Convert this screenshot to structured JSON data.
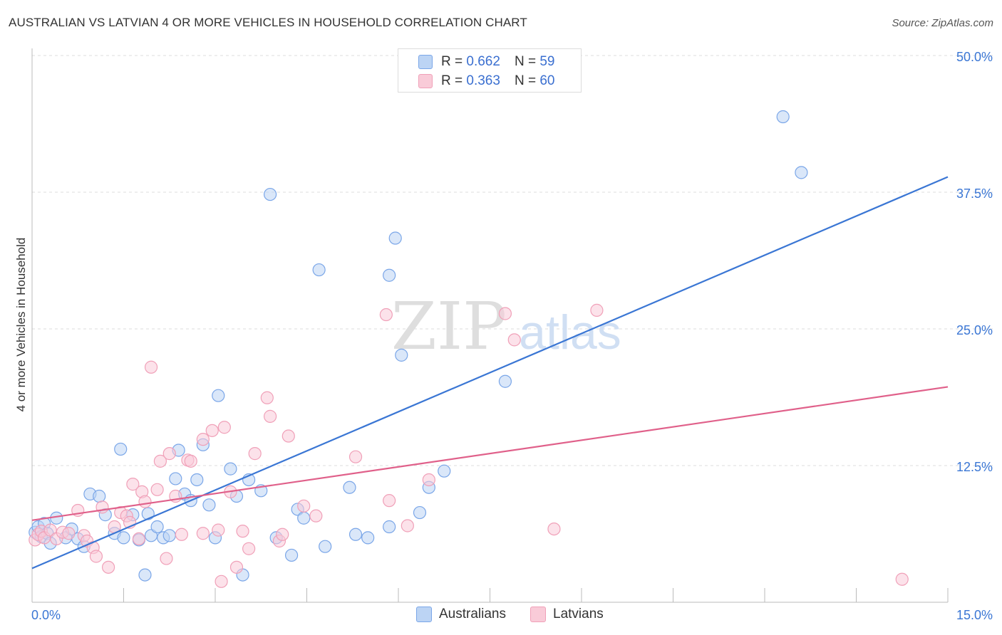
{
  "header": {
    "title": "AUSTRALIAN VS LATVIAN 4 OR MORE VEHICLES IN HOUSEHOLD CORRELATION CHART",
    "source": "Source: ZipAtlas.com"
  },
  "watermark": {
    "zip": "ZIP",
    "atlas": "atlas"
  },
  "legend_top": {
    "rows": [
      {
        "r_label": "R = ",
        "r_value": "0.662",
        "n_label": "N = ",
        "n_value": "59",
        "color": "#7aa6e8",
        "fill": "#bcd4f4"
      },
      {
        "r_label": "R = ",
        "r_value": "0.363",
        "n_label": "N = ",
        "n_value": "60",
        "color": "#f0a0b8",
        "fill": "#f9cbd8"
      }
    ]
  },
  "legend_bottom": {
    "items": [
      {
        "label": "Australians",
        "color": "#7aa6e8",
        "fill": "#bcd4f4"
      },
      {
        "label": "Latvians",
        "color": "#f0a0b8",
        "fill": "#f9cbd8"
      }
    ]
  },
  "chart_data": {
    "type": "scatter",
    "title": "AUSTRALIAN VS LATVIAN 4 OR MORE VEHICLES IN HOUSEHOLD CORRELATION CHART",
    "xlabel": "",
    "ylabel": "4 or more Vehicles in Household",
    "xlim": [
      0,
      15
    ],
    "ylim": [
      0,
      50
    ],
    "x_tick_labels": [
      {
        "value": 0,
        "label": "0.0%"
      },
      {
        "value": 15,
        "label": "15.0%"
      }
    ],
    "y_tick_labels": [
      {
        "value": 12.5,
        "label": "12.5%"
      },
      {
        "value": 25,
        "label": "25.0%"
      },
      {
        "value": 37.5,
        "label": "37.5%"
      },
      {
        "value": 50,
        "label": "50.0%"
      }
    ],
    "x_minor_ticks": [
      1.5,
      3,
      4.5,
      6,
      7.5,
      9,
      10.5,
      12,
      13.5
    ],
    "grid": true,
    "legend_position": "top-center",
    "series": [
      {
        "name": "Australians",
        "color": "#3a76d4",
        "marker_fill": "#bcd4f4",
        "marker_stroke": "#7aa6e8",
        "R": 0.662,
        "N": 59,
        "trendline": [
          [
            0,
            3.1
          ],
          [
            15,
            38.9
          ]
        ],
        "points": [
          [
            0.05,
            6.4
          ],
          [
            0.1,
            6.9
          ],
          [
            0.15,
            6.0
          ],
          [
            0.2,
            7.2
          ],
          [
            0.25,
            6.3
          ],
          [
            0.3,
            5.4
          ],
          [
            0.4,
            7.7
          ],
          [
            0.55,
            5.9
          ],
          [
            0.65,
            6.7
          ],
          [
            0.75,
            5.8
          ],
          [
            0.85,
            5.1
          ],
          [
            0.95,
            9.9
          ],
          [
            1.1,
            9.7
          ],
          [
            1.2,
            8.0
          ],
          [
            1.35,
            6.3
          ],
          [
            1.45,
            14.0
          ],
          [
            1.5,
            5.9
          ],
          [
            1.65,
            8.0
          ],
          [
            1.75,
            5.7
          ],
          [
            1.85,
            2.5
          ],
          [
            1.9,
            8.1
          ],
          [
            1.95,
            6.1
          ],
          [
            2.05,
            6.9
          ],
          [
            2.15,
            5.9
          ],
          [
            2.25,
            6.1
          ],
          [
            2.35,
            11.3
          ],
          [
            2.4,
            13.9
          ],
          [
            2.5,
            9.9
          ],
          [
            2.6,
            9.3
          ],
          [
            2.7,
            11.2
          ],
          [
            2.8,
            14.4
          ],
          [
            2.9,
            8.9
          ],
          [
            3.0,
            5.9
          ],
          [
            3.05,
            18.9
          ],
          [
            3.25,
            12.2
          ],
          [
            3.35,
            9.7
          ],
          [
            3.45,
            2.5
          ],
          [
            3.55,
            11.2
          ],
          [
            3.75,
            10.2
          ],
          [
            3.9,
            37.3
          ],
          [
            4.0,
            5.9
          ],
          [
            4.25,
            4.3
          ],
          [
            4.35,
            8.5
          ],
          [
            4.45,
            7.7
          ],
          [
            4.7,
            30.4
          ],
          [
            4.8,
            5.1
          ],
          [
            5.2,
            10.5
          ],
          [
            5.3,
            6.2
          ],
          [
            5.5,
            5.9
          ],
          [
            5.85,
            6.9
          ],
          [
            5.85,
            29.9
          ],
          [
            5.95,
            33.3
          ],
          [
            6.05,
            22.6
          ],
          [
            6.35,
            8.2
          ],
          [
            6.5,
            10.5
          ],
          [
            6.75,
            12.0
          ],
          [
            7.75,
            20.2
          ],
          [
            12.3,
            44.4
          ],
          [
            12.6,
            39.3
          ]
        ]
      },
      {
        "name": "Latvians",
        "color": "#e0608a",
        "marker_fill": "#f9cbd8",
        "marker_stroke": "#f0a0b8",
        "R": 0.363,
        "N": 60,
        "trendline": [
          [
            0,
            7.5
          ],
          [
            15,
            19.7
          ]
        ],
        "points": [
          [
            0.05,
            5.7
          ],
          [
            0.1,
            6.2
          ],
          [
            0.15,
            6.5
          ],
          [
            0.2,
            5.9
          ],
          [
            0.3,
            6.6
          ],
          [
            0.4,
            5.8
          ],
          [
            0.5,
            6.4
          ],
          [
            0.6,
            6.3
          ],
          [
            0.75,
            8.4
          ],
          [
            0.85,
            6.1
          ],
          [
            0.9,
            5.6
          ],
          [
            1.0,
            5.0
          ],
          [
            1.05,
            4.2
          ],
          [
            1.15,
            8.7
          ],
          [
            1.25,
            3.2
          ],
          [
            1.35,
            6.9
          ],
          [
            1.45,
            8.2
          ],
          [
            1.55,
            7.9
          ],
          [
            1.6,
            7.3
          ],
          [
            1.65,
            10.8
          ],
          [
            1.75,
            5.8
          ],
          [
            1.8,
            10.1
          ],
          [
            1.85,
            9.2
          ],
          [
            1.95,
            21.5
          ],
          [
            2.05,
            10.3
          ],
          [
            2.1,
            12.9
          ],
          [
            2.2,
            4.0
          ],
          [
            2.25,
            13.6
          ],
          [
            2.35,
            9.7
          ],
          [
            2.45,
            6.2
          ],
          [
            2.55,
            13.0
          ],
          [
            2.6,
            12.9
          ],
          [
            2.8,
            6.3
          ],
          [
            2.8,
            14.9
          ],
          [
            2.95,
            15.7
          ],
          [
            3.05,
            6.6
          ],
          [
            3.1,
            1.9
          ],
          [
            3.15,
            16.0
          ],
          [
            3.25,
            10.1
          ],
          [
            3.35,
            3.2
          ],
          [
            3.45,
            6.5
          ],
          [
            3.55,
            4.9
          ],
          [
            3.65,
            13.6
          ],
          [
            3.85,
            18.7
          ],
          [
            3.9,
            17.0
          ],
          [
            4.05,
            5.6
          ],
          [
            4.1,
            6.2
          ],
          [
            4.2,
            15.2
          ],
          [
            4.45,
            8.8
          ],
          [
            4.65,
            7.9
          ],
          [
            5.3,
            13.3
          ],
          [
            5.8,
            26.3
          ],
          [
            5.85,
            9.3
          ],
          [
            6.15,
            7.0
          ],
          [
            6.5,
            11.2
          ],
          [
            7.75,
            26.4
          ],
          [
            7.9,
            24.0
          ],
          [
            8.55,
            6.7
          ],
          [
            9.25,
            26.7
          ],
          [
            14.25,
            2.1
          ]
        ]
      }
    ]
  }
}
